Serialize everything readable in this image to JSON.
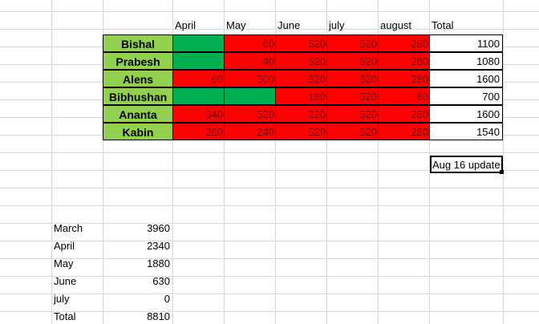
{
  "header": {
    "months": [
      "April",
      "May",
      "June",
      "july",
      "august"
    ],
    "total_label": "Total"
  },
  "rows": [
    {
      "name": "Bishal",
      "cells": [
        {
          "v": "",
          "c": "green"
        },
        {
          "v": "60",
          "c": "red"
        },
        {
          "v": "520",
          "c": "red"
        },
        {
          "v": "520",
          "c": "red"
        },
        {
          "v": "280",
          "c": "red"
        }
      ],
      "total": "1100"
    },
    {
      "name": "Prabesh",
      "cells": [
        {
          "v": "",
          "c": "green"
        },
        {
          "v": "40",
          "c": "red"
        },
        {
          "v": "520",
          "c": "red"
        },
        {
          "v": "520",
          "c": "red"
        },
        {
          "v": "280",
          "c": "red"
        }
      ],
      "total": "1080"
    },
    {
      "name": "Alens",
      "cells": [
        {
          "v": "60",
          "c": "red"
        },
        {
          "v": "500",
          "c": "red"
        },
        {
          "v": "520",
          "c": "red"
        },
        {
          "v": "520",
          "c": "red"
        },
        {
          "v": "280",
          "c": "red"
        }
      ],
      "total": "1600"
    },
    {
      "name": "Bibhushan",
      "cells": [
        {
          "v": "",
          "c": "green"
        },
        {
          "v": "",
          "c": "green"
        },
        {
          "v": "180",
          "c": "red"
        },
        {
          "v": "520",
          "c": "red"
        },
        {
          "v": "80",
          "c": "red"
        }
      ],
      "total": "700"
    },
    {
      "name": "Ananta",
      "cells": [
        {
          "v": "340",
          "c": "red"
        },
        {
          "v": "520",
          "c": "red"
        },
        {
          "v": "220",
          "c": "red"
        },
        {
          "v": "520",
          "c": "red"
        },
        {
          "v": "280",
          "c": "red"
        }
      ],
      "total": "1600"
    },
    {
      "name": "Kabin",
      "cells": [
        {
          "v": "260",
          "c": "red"
        },
        {
          "v": "240",
          "c": "red"
        },
        {
          "v": "520",
          "c": "red"
        },
        {
          "v": "520",
          "c": "red"
        },
        {
          "v": "280",
          "c": "red"
        }
      ],
      "total": "1540"
    }
  ],
  "note": "Aug 16 update",
  "summary": [
    {
      "label": "March",
      "value": "3960"
    },
    {
      "label": "April",
      "value": "2340"
    },
    {
      "label": "May",
      "value": "1880"
    },
    {
      "label": "June",
      "value": "630"
    },
    {
      "label": "july",
      "value": "0"
    },
    {
      "label": "Total",
      "value": "8810"
    }
  ],
  "colors": {
    "name_fill": "#92d050",
    "paid_fill": "#00b050",
    "due_fill": "#ff0000",
    "gridline": "#d8d8d8"
  }
}
